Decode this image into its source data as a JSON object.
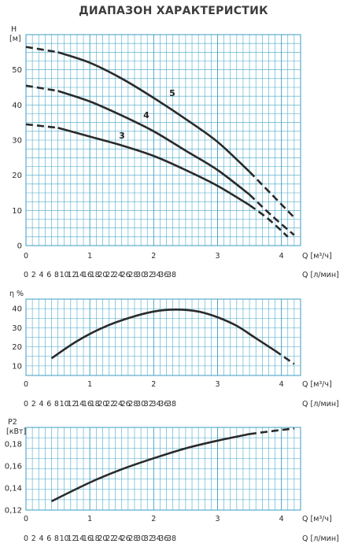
{
  "title": "ДИАПАЗОН ХАРАКТЕРИСТИК",
  "chart_data": [
    {
      "type": "line",
      "id": "head",
      "ylabel": "H",
      "yunit": "[м]",
      "ylim": [
        0,
        60
      ],
      "yticks": [
        0,
        10,
        20,
        30,
        40,
        50
      ],
      "x1label": "Q [м³/ч]",
      "x2label": "Q [л/мин]",
      "xlim": [
        0,
        4.3
      ],
      "xticks": [
        0,
        1,
        2,
        3,
        4
      ],
      "x2ticks": [
        "0",
        "2",
        "4",
        "6",
        "8",
        "10",
        "12",
        "14",
        "16",
        "18",
        "20",
        "22",
        "24",
        "26",
        "28",
        "30",
        "32",
        "34",
        "36",
        "38"
      ],
      "grid": true,
      "series": [
        {
          "name": "5",
          "x": [
            0,
            0.5,
            1.0,
            1.5,
            2.0,
            2.5,
            3.0,
            3.5,
            3.85,
            4.2
          ],
          "y": [
            56.5,
            55,
            52,
            47.5,
            42,
            36,
            29.5,
            21,
            14.5,
            8
          ],
          "solid_until": 3.8
        },
        {
          "name": "4",
          "x": [
            0,
            0.5,
            1.0,
            1.5,
            2.0,
            2.5,
            3.0,
            3.5,
            3.85,
            4.2
          ],
          "y": [
            45.5,
            44,
            41,
            37,
            32.5,
            27,
            21.5,
            14.5,
            8.5,
            3
          ],
          "solid_until": 3.75
        },
        {
          "name": "3",
          "x": [
            0,
            0.5,
            1.0,
            1.5,
            2.0,
            2.5,
            3.0,
            3.5,
            3.8,
            4.1
          ],
          "y": [
            34.5,
            33.5,
            31,
            28.5,
            25.5,
            21.5,
            17,
            11.5,
            7.5,
            2.5
          ],
          "solid_until": 3.7
        }
      ]
    },
    {
      "type": "line",
      "id": "efficiency",
      "ylabel": "η %",
      "ylim": [
        5,
        45
      ],
      "yticks": [
        10,
        20,
        30,
        40
      ],
      "x1label": "Q [м³/ч]",
      "x2label": "Q [л/мин]",
      "xlim": [
        0,
        4.3
      ],
      "xticks": [
        0,
        1,
        2,
        3,
        4
      ],
      "x2ticks": [
        "0",
        "2",
        "4",
        "6",
        "8",
        "10",
        "12",
        "14",
        "16",
        "18",
        "20",
        "22",
        "24",
        "26",
        "28",
        "30",
        "32",
        "34",
        "36",
        "38"
      ],
      "grid": true,
      "series": [
        {
          "x": [
            0.4,
            0.8,
            1.2,
            1.6,
            2.0,
            2.35,
            2.7,
            3.0,
            3.3,
            3.6,
            3.9,
            4.2
          ],
          "y": [
            14,
            23,
            30,
            35,
            38.5,
            39.5,
            38.5,
            35.5,
            31,
            24.5,
            18,
            11
          ],
          "solid_until": 3.9
        }
      ]
    },
    {
      "type": "line",
      "id": "power",
      "ylabel": "P2",
      "yunit": "[кВт]",
      "ylim": [
        0.12,
        0.195
      ],
      "yticks": [
        "0,12",
        "0,14",
        "0,16",
        "0,18"
      ],
      "ytick_values": [
        0.12,
        0.14,
        0.16,
        0.18
      ],
      "x1label": "Q [м³/ч]",
      "x2label": "Q [л/мин]",
      "xlim": [
        0,
        4.3
      ],
      "xticks": [
        0,
        1,
        2,
        3,
        4
      ],
      "x2ticks": [
        "0",
        "2",
        "4",
        "6",
        "8",
        "10",
        "12",
        "14",
        "16",
        "18",
        "20",
        "22",
        "24",
        "26",
        "28",
        "30",
        "32",
        "34",
        "36",
        "38"
      ],
      "grid": true,
      "series": [
        {
          "x": [
            0.4,
            1.0,
            1.5,
            2.0,
            2.5,
            3.0,
            3.5,
            3.9,
            4.2
          ],
          "y": [
            0.128,
            0.145,
            0.157,
            0.167,
            0.176,
            0.183,
            0.189,
            0.192,
            0.194
          ],
          "solid_until": 3.85
        }
      ]
    }
  ]
}
